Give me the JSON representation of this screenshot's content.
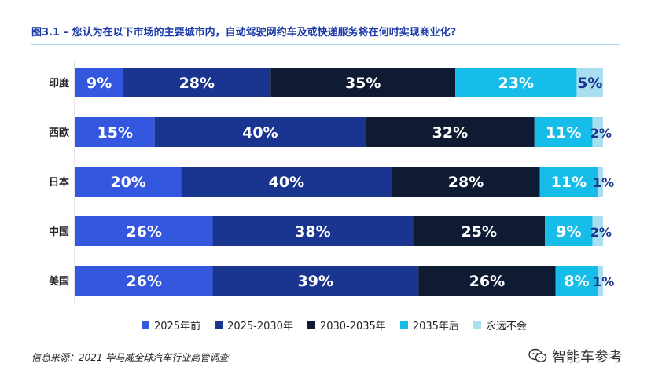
{
  "title": "图3.1 – 您认为在以下市场的主要城市内，自动驾驶网约车及或快递服务将在何时实现商业化?",
  "source": "信息来源：2021 毕马威全球汽车行业高管调查",
  "watermark": {
    "text": "智能车参考",
    "icon": "wechat-icon"
  },
  "colors": [
    "#3457e0",
    "#1a3590",
    "#0f1a33",
    "#16bde8",
    "#a9def0"
  ],
  "chart_data": {
    "type": "bar",
    "orientation": "horizontal",
    "stacked": true,
    "categories": [
      "印度",
      "西欧",
      "日本",
      "中国",
      "美国"
    ],
    "series": [
      {
        "name": "2025年前",
        "values": [
          9,
          15,
          20,
          26,
          26
        ]
      },
      {
        "name": "2025-2030年",
        "values": [
          28,
          40,
          40,
          38,
          39
        ]
      },
      {
        "name": "2030-2035年",
        "values": [
          35,
          32,
          28,
          25,
          26
        ]
      },
      {
        "name": "2035年后",
        "values": [
          23,
          11,
          11,
          9,
          8
        ]
      },
      {
        "name": "永远不会",
        "values": [
          5,
          2,
          1,
          2,
          1
        ]
      }
    ],
    "value_labels": [
      [
        "9%",
        "28%",
        "35%",
        "23%",
        "5%"
      ],
      [
        "15%",
        "40%",
        "32%",
        "11%",
        "2%"
      ],
      [
        "20%",
        "40%",
        "28%",
        "11%",
        "1%"
      ],
      [
        "26%",
        "38%",
        "25%",
        "9%",
        "2%"
      ],
      [
        "26%",
        "39%",
        "26%",
        "8%",
        "1%"
      ]
    ],
    "legend_position": "bottom",
    "grid": false
  }
}
